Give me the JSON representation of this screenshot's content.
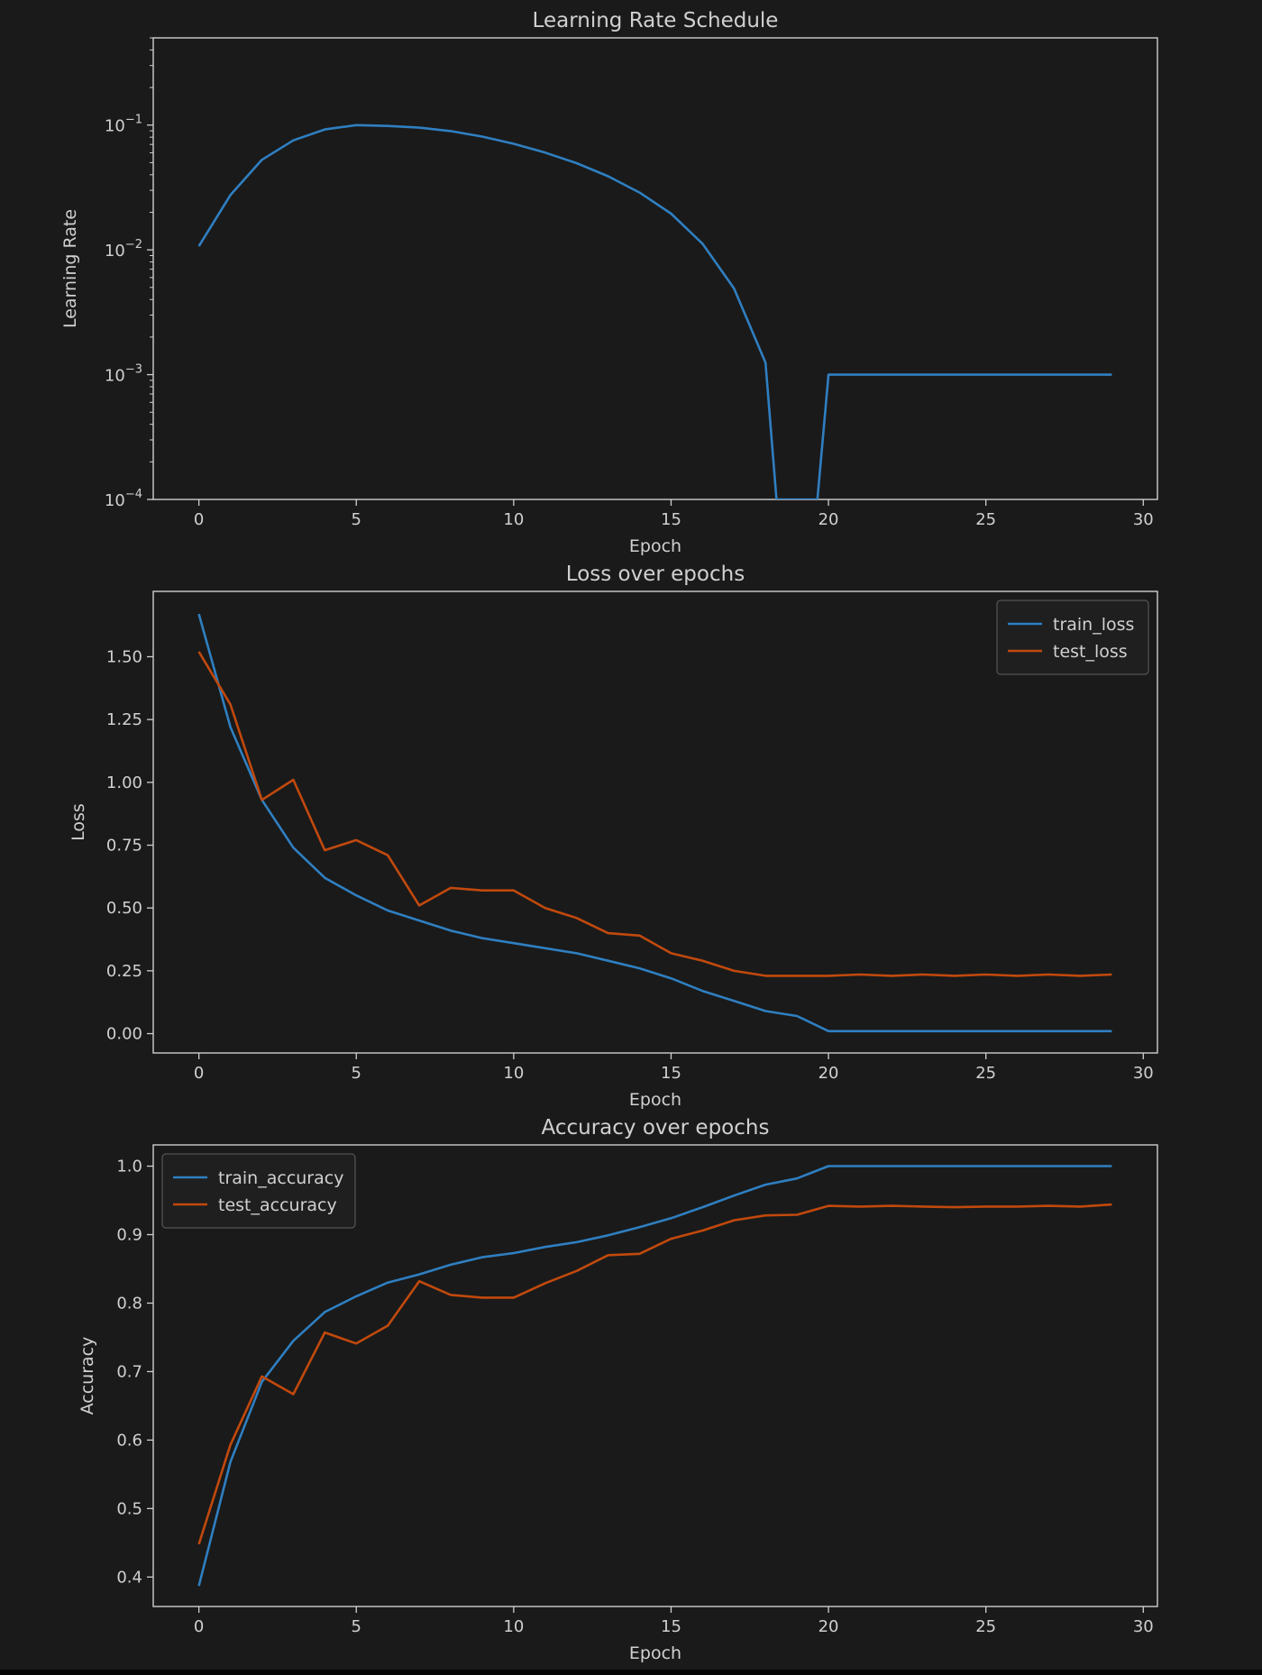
{
  "colors": {
    "background": "#1a1a1a",
    "axes": "#cfcfcf",
    "text": "#d0d0d0",
    "series_blue": "#2f7fc1",
    "series_orange": "#c1490d",
    "legend_bg": "#1f1f1f",
    "legend_border": "#555555"
  },
  "chart_data": [
    {
      "type": "line",
      "title": "Learning Rate Schedule",
      "xlabel": "Epoch",
      "ylabel": "Learning Rate",
      "yscale": "log",
      "xlim": [
        -1.45,
        30.45
      ],
      "ylim": [
        0.0001,
        0.5
      ],
      "xticks": [
        0,
        5,
        10,
        15,
        20,
        25,
        30
      ],
      "xtick_labels": [
        "0",
        "5",
        "10",
        "15",
        "20",
        "25",
        "30"
      ],
      "yticks": [
        0.0001,
        0.001,
        0.01,
        0.1
      ],
      "ytick_labels": [
        {
          "base": "10",
          "exp": "−4"
        },
        {
          "base": "10",
          "exp": "−3"
        },
        {
          "base": "10",
          "exp": "−2"
        },
        {
          "base": "10",
          "exp": "−1"
        }
      ],
      "grid": false,
      "legend": null,
      "series": [
        {
          "color_key": "series_blue",
          "x": [
            0,
            1,
            2,
            3,
            4,
            5,
            6,
            7,
            8,
            9,
            10,
            11,
            12,
            13,
            14,
            15,
            16,
            17,
            18,
            18.35,
            19.65,
            20,
            21,
            22,
            23,
            24,
            25,
            26,
            27,
            28,
            29
          ],
          "y": [
            0.0107,
            0.0275,
            0.0527,
            0.0754,
            0.0922,
            0.0999,
            0.0985,
            0.0953,
            0.0895,
            0.0809,
            0.0708,
            0.0602,
            0.0495,
            0.0389,
            0.0288,
            0.0195,
            0.0112,
            0.0049,
            0.00125,
            0.0001,
            0.0001,
            0.001,
            0.001,
            0.001,
            0.001,
            0.001,
            0.001,
            0.001,
            0.001,
            0.001,
            0.001
          ]
        }
      ]
    },
    {
      "type": "line",
      "title": "Loss over epochs",
      "xlabel": "Epoch",
      "ylabel": "Loss",
      "xlim": [
        -1.45,
        30.45
      ],
      "ylim": [
        -0.077,
        1.76
      ],
      "xticks": [
        0,
        5,
        10,
        15,
        20,
        25,
        30
      ],
      "xtick_labels": [
        "0",
        "5",
        "10",
        "15",
        "20",
        "25",
        "30"
      ],
      "yticks": [
        0,
        0.25,
        0.5,
        0.75,
        1.0,
        1.25,
        1.5
      ],
      "ytick_labels": [
        "0.00",
        "0.25",
        "0.50",
        "0.75",
        "1.00",
        "1.25",
        "1.50"
      ],
      "grid": false,
      "legend": "top-right",
      "series": [
        {
          "name": "train_loss",
          "color_key": "series_blue",
          "x": [
            0,
            1,
            2,
            3,
            4,
            5,
            6,
            7,
            8,
            9,
            10,
            11,
            12,
            13,
            14,
            15,
            16,
            17,
            18,
            19,
            20,
            21,
            22,
            23,
            24,
            25,
            26,
            27,
            28,
            29
          ],
          "y": [
            1.67,
            1.22,
            0.93,
            0.74,
            0.62,
            0.55,
            0.49,
            0.45,
            0.41,
            0.38,
            0.36,
            0.34,
            0.32,
            0.29,
            0.26,
            0.22,
            0.17,
            0.13,
            0.09,
            0.07,
            0.01,
            0.01,
            0.01,
            0.01,
            0.01,
            0.01,
            0.01,
            0.01,
            0.01,
            0.01
          ]
        },
        {
          "name": "test_loss",
          "color_key": "series_orange",
          "x": [
            0,
            1,
            2,
            3,
            4,
            5,
            6,
            7,
            8,
            9,
            10,
            11,
            12,
            13,
            14,
            15,
            16,
            17,
            18,
            19,
            20,
            21,
            22,
            23,
            24,
            25,
            26,
            27,
            28,
            29
          ],
          "y": [
            1.52,
            1.31,
            0.93,
            1.01,
            0.73,
            0.77,
            0.71,
            0.51,
            0.58,
            0.57,
            0.57,
            0.5,
            0.46,
            0.4,
            0.39,
            0.32,
            0.29,
            0.25,
            0.23,
            0.23,
            0.23,
            0.235,
            0.23,
            0.235,
            0.23,
            0.235,
            0.23,
            0.235,
            0.23,
            0.235
          ]
        }
      ]
    },
    {
      "type": "line",
      "title": "Accuracy over epochs",
      "xlabel": "Epoch",
      "ylabel": "Accuracy",
      "xlim": [
        -1.45,
        30.45
      ],
      "ylim": [
        0.357,
        1.031
      ],
      "xticks": [
        0,
        5,
        10,
        15,
        20,
        25,
        30
      ],
      "xtick_labels": [
        "0",
        "5",
        "10",
        "15",
        "20",
        "25",
        "30"
      ],
      "yticks": [
        0.4,
        0.5,
        0.6,
        0.7,
        0.8,
        0.9,
        1.0
      ],
      "ytick_labels": [
        "0.4",
        "0.5",
        "0.6",
        "0.7",
        "0.8",
        "0.9",
        "1.0"
      ],
      "grid": false,
      "legend": "top-left",
      "series": [
        {
          "name": "train_accuracy",
          "color_key": "series_blue",
          "x": [
            0,
            1,
            2,
            3,
            4,
            5,
            6,
            7,
            8,
            9,
            10,
            11,
            12,
            13,
            14,
            15,
            16,
            17,
            18,
            19,
            20,
            21,
            22,
            23,
            24,
            25,
            26,
            27,
            28,
            29
          ],
          "y": [
            0.387,
            0.568,
            0.685,
            0.745,
            0.787,
            0.81,
            0.83,
            0.842,
            0.856,
            0.867,
            0.873,
            0.882,
            0.889,
            0.899,
            0.911,
            0.924,
            0.94,
            0.957,
            0.973,
            0.982,
            1.0,
            1.0,
            1.0,
            1.0,
            1.0,
            1.0,
            1.0,
            1.0,
            1.0,
            1.0
          ]
        },
        {
          "name": "test_accuracy",
          "color_key": "series_orange",
          "x": [
            0,
            1,
            2,
            3,
            4,
            5,
            6,
            7,
            8,
            9,
            10,
            11,
            12,
            13,
            14,
            15,
            16,
            17,
            18,
            19,
            20,
            21,
            22,
            23,
            24,
            25,
            26,
            27,
            28,
            29
          ],
          "y": [
            0.448,
            0.593,
            0.693,
            0.667,
            0.757,
            0.741,
            0.767,
            0.832,
            0.812,
            0.808,
            0.808,
            0.829,
            0.847,
            0.87,
            0.872,
            0.894,
            0.906,
            0.921,
            0.928,
            0.929,
            0.942,
            0.941,
            0.942,
            0.941,
            0.94,
            0.941,
            0.941,
            0.942,
            0.941,
            0.944
          ]
        }
      ]
    }
  ]
}
